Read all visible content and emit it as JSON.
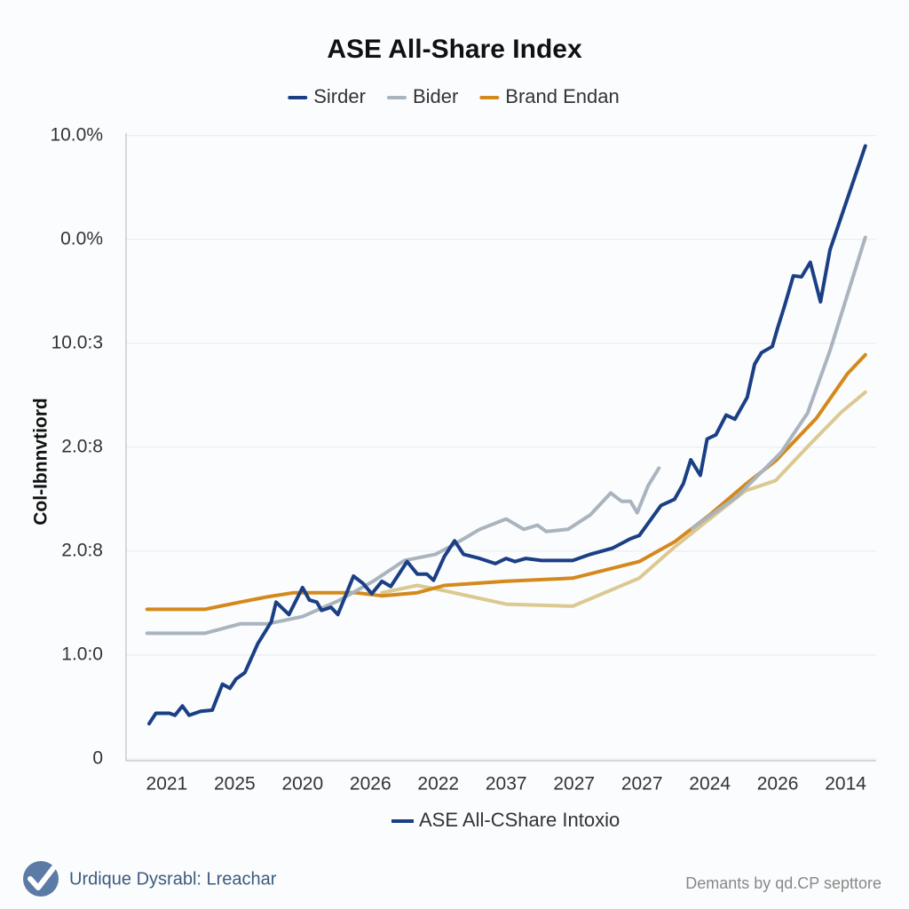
{
  "chart_data": {
    "type": "line",
    "title": "ASE All-Share Index",
    "y_label": "Col-Ibnnvtiord",
    "grid": true,
    "legend": "top",
    "xlim": [
      -0.6,
      10.45
    ],
    "ylim": [
      0,
      6.1
    ],
    "xticks": [
      {
        "value": 0,
        "label": "2021"
      },
      {
        "value": 1,
        "label": "2025"
      },
      {
        "value": 2,
        "label": "2020"
      },
      {
        "value": 3,
        "label": "2026"
      },
      {
        "value": 4,
        "label": "2022"
      },
      {
        "value": 5,
        "label": "2037"
      },
      {
        "value": 6,
        "label": "2027"
      },
      {
        "value": 7,
        "label": "2027"
      },
      {
        "value": 8,
        "label": "2024"
      },
      {
        "value": 9,
        "label": "2026"
      },
      {
        "value": 10,
        "label": "2014"
      }
    ],
    "yticks": [
      0,
      {
        "value": 1,
        "label": "1.0:0"
      },
      {
        "value": 2,
        "label": "2.0:8"
      },
      {
        "value": 3,
        "label": "2.0:8"
      },
      {
        "value": 4,
        "label": "10.0:3"
      },
      {
        "value": 5,
        "label": "0.0%"
      },
      {
        "value": 6,
        "label": "10.0%"
      }
    ],
    "series": [
      {
        "name": "Sirder",
        "color": "#1b3f85",
        "x": [
          -0.26,
          -0.16,
          0.04,
          0.12,
          0.23,
          0.33,
          0.5,
          0.67,
          0.82,
          0.93,
          1.02,
          1.15,
          1.34,
          1.54,
          1.61,
          1.8,
          2.0,
          2.1,
          2.21,
          2.28,
          2.42,
          2.52,
          2.75,
          2.89,
          3.02,
          3.17,
          3.3,
          3.54,
          3.69,
          3.83,
          3.93,
          4.09,
          4.24,
          4.37,
          4.61,
          4.84,
          5.0,
          5.13,
          5.29,
          5.52,
          5.98,
          6.24,
          6.57,
          6.83,
          6.96,
          7.28,
          7.48,
          7.61,
          7.72,
          7.86,
          7.96,
          8.09,
          8.24,
          8.37,
          8.55,
          8.66,
          8.76,
          8.92,
          9.0,
          9.1,
          9.23,
          9.35,
          9.48,
          9.63,
          9.77,
          10.29
        ],
        "values": [
          0.34,
          0.44,
          0.44,
          0.42,
          0.51,
          0.42,
          0.46,
          0.47,
          0.72,
          0.68,
          0.77,
          0.83,
          1.11,
          1.32,
          1.51,
          1.39,
          1.65,
          1.53,
          1.51,
          1.43,
          1.46,
          1.39,
          1.76,
          1.69,
          1.59,
          1.71,
          1.66,
          1.9,
          1.78,
          1.78,
          1.72,
          1.95,
          2.1,
          1.97,
          1.93,
          1.88,
          1.93,
          1.9,
          1.93,
          1.91,
          1.91,
          1.97,
          2.03,
          2.12,
          2.15,
          2.44,
          2.5,
          2.65,
          2.88,
          2.73,
          3.08,
          3.12,
          3.31,
          3.27,
          3.48,
          3.8,
          3.91,
          3.97,
          4.15,
          4.36,
          4.65,
          4.64,
          4.78,
          4.4,
          4.9,
          5.9
        ]
      },
      {
        "name": "Bider",
        "color": "#a9b4bf",
        "x": [
          -0.29,
          0.56,
          1.08,
          1.48,
          2.0,
          2.52,
          3.04,
          3.5,
          3.96,
          4.22,
          4.61,
          5.0,
          5.26,
          5.46,
          5.59,
          5.91,
          6.24,
          6.54,
          6.7,
          6.83,
          6.93,
          7.09,
          7.25,
          null,
          7.74,
          8.39,
          9.05,
          9.44,
          9.77,
          10.29
        ],
        "values": [
          1.21,
          1.21,
          1.3,
          1.3,
          1.37,
          1.52,
          1.71,
          1.91,
          1.97,
          2.06,
          2.21,
          2.31,
          2.21,
          2.25,
          2.19,
          2.21,
          2.35,
          2.56,
          2.48,
          2.48,
          2.37,
          2.63,
          2.8,
          null,
          2.22,
          2.52,
          2.95,
          3.33,
          3.93,
          5.02
        ]
      },
      {
        "name": "Brand Endan",
        "color": "#d4891c",
        "x": [
          -0.29,
          0.56,
          1.08,
          1.48,
          1.87,
          2.78,
          3.17,
          3.69,
          4.09,
          5.0,
          5.98,
          6.96,
          7.48,
          8.0,
          8.52,
          8.97,
          9.57,
          10.03,
          10.29
        ],
        "values": [
          1.44,
          1.44,
          1.51,
          1.56,
          1.6,
          1.6,
          1.57,
          1.6,
          1.67,
          1.71,
          1.74,
          1.9,
          2.09,
          2.35,
          2.64,
          2.87,
          3.28,
          3.71,
          3.89
        ]
      },
      {
        "color": "#dcc891",
        "x": [
          3.17,
          3.69,
          4.09,
          5.0,
          5.98,
          6.96,
          7.48,
          8.0,
          8.52,
          8.97,
          9.49,
          9.94,
          10.29
        ],
        "values": [
          1.6,
          1.67,
          1.62,
          1.49,
          1.47,
          1.74,
          2.04,
          2.31,
          2.58,
          2.68,
          3.04,
          3.34,
          3.53
        ]
      }
    ],
    "bottom_legend": {
      "label": "ASE All-CShare Intoxio",
      "color": "#1b3f85"
    }
  },
  "footer": {
    "brand": "Urdique Dysrabl: Lreachar",
    "credit": "Demants by qd.CP septtore"
  }
}
